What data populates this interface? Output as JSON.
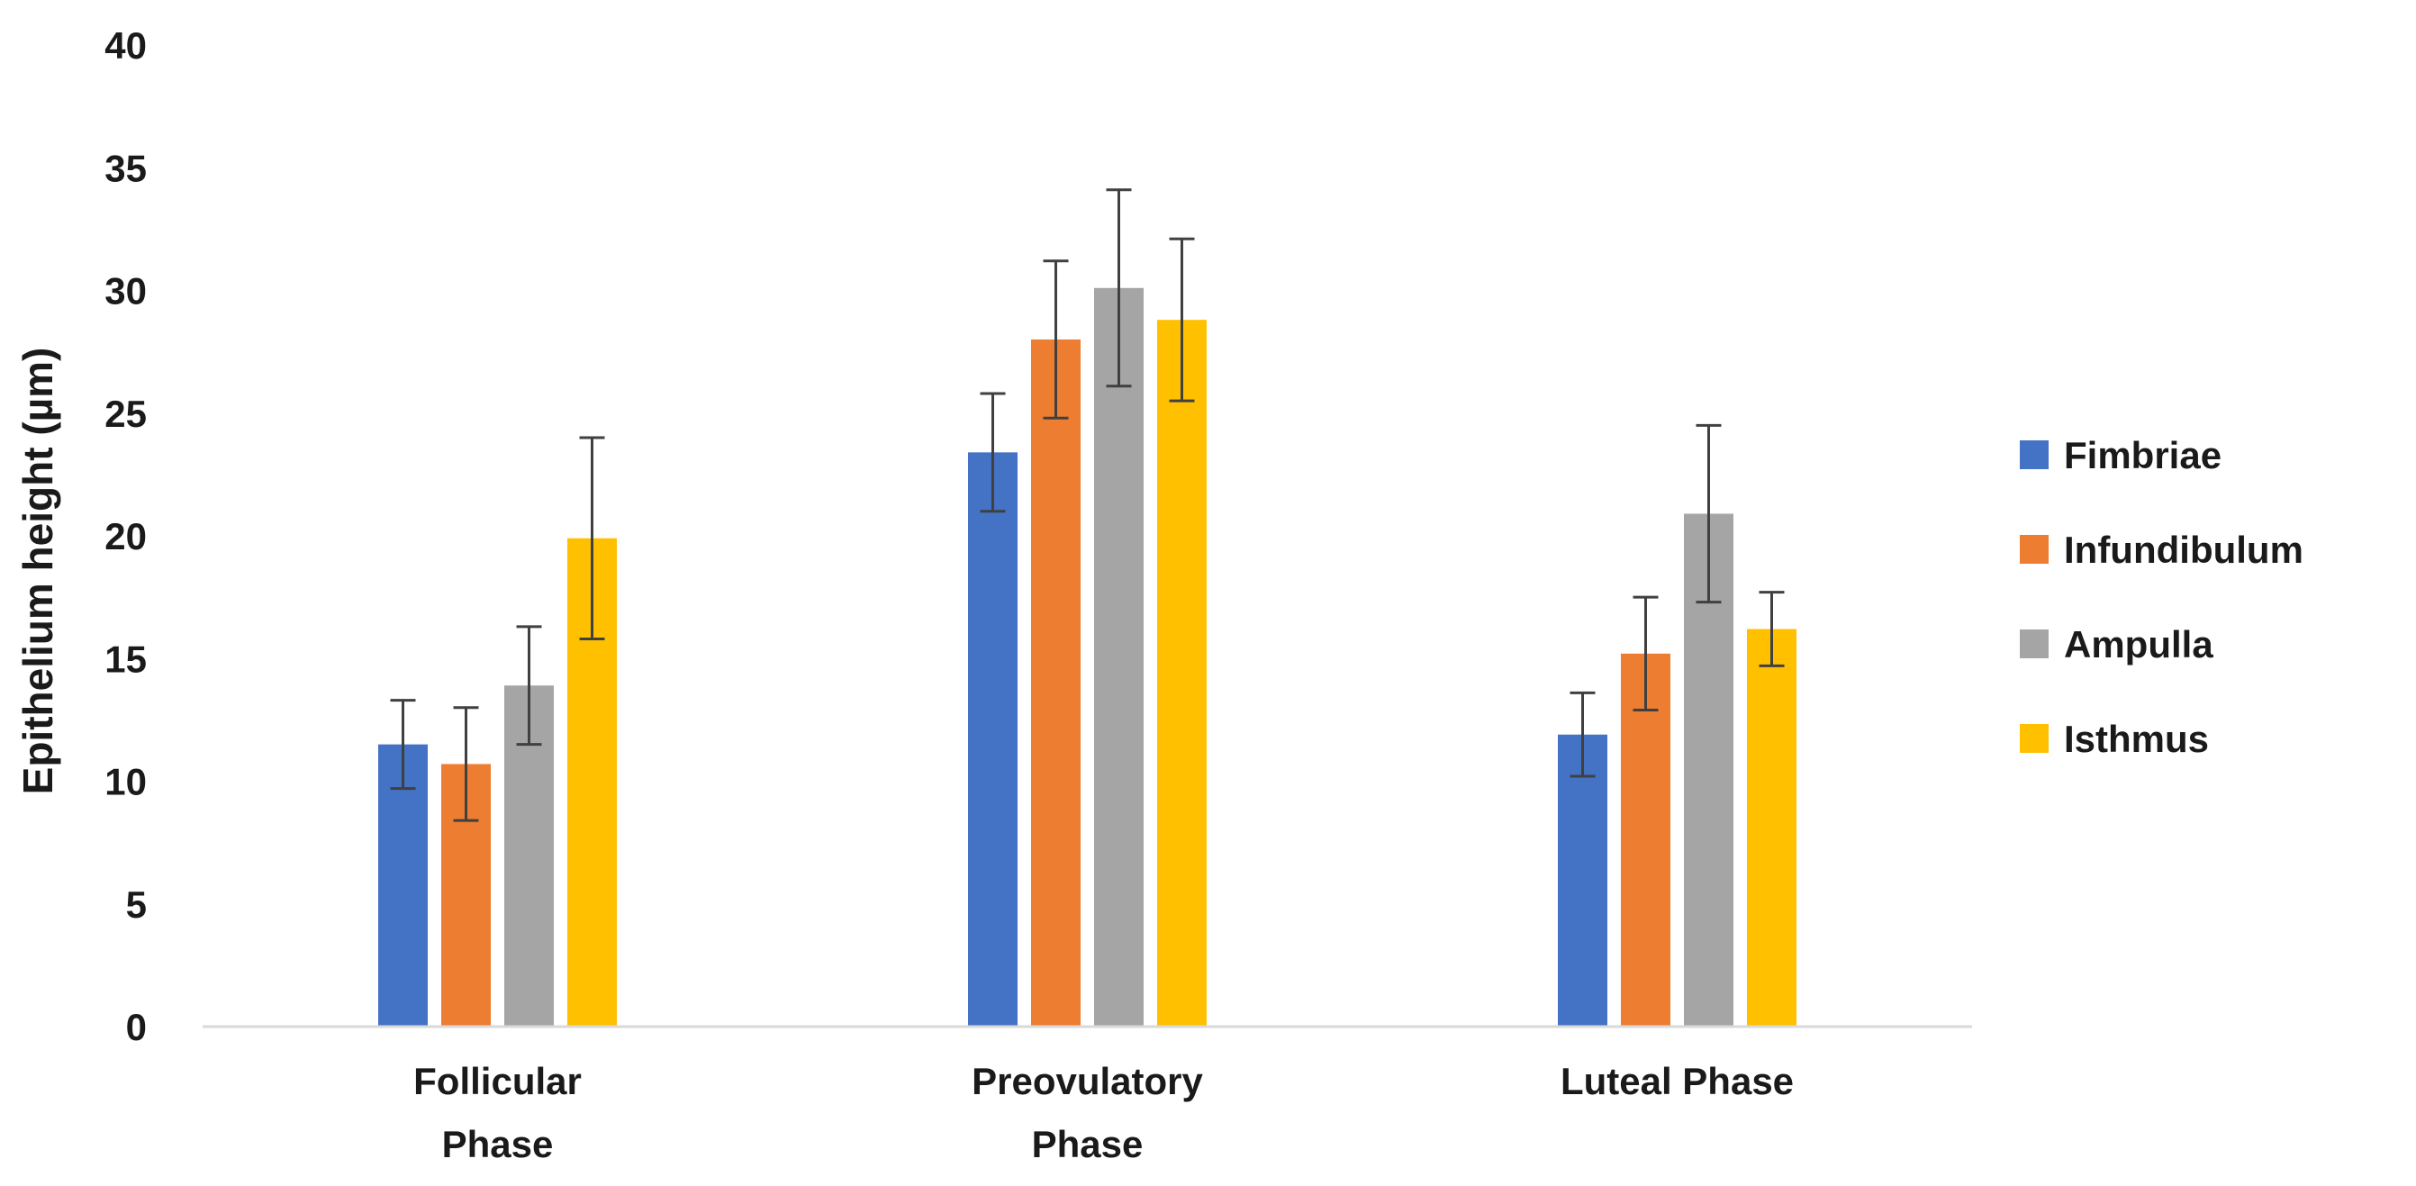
{
  "chart_data": {
    "type": "bar",
    "title": "",
    "xlabel": "",
    "ylabel": "Epithelium height (µm)",
    "ylim": [
      0,
      40
    ],
    "yticks": [
      0,
      5,
      10,
      15,
      20,
      25,
      30,
      35,
      40
    ],
    "grid": false,
    "legend_position": "right",
    "categories": [
      [
        "Follicular",
        "Phase"
      ],
      [
        "Preovulatory",
        "Phase"
      ],
      [
        "Luteal Phase"
      ]
    ],
    "series": [
      {
        "name": "Fimbriae",
        "color": "#4472C4",
        "values": [
          11.5,
          23.4,
          11.9
        ],
        "errors": [
          1.8,
          2.4,
          1.7
        ]
      },
      {
        "name": "Infundibulum",
        "color": "#ED7D31",
        "values": [
          10.7,
          28.0,
          15.2
        ],
        "errors": [
          2.3,
          3.2,
          2.3
        ]
      },
      {
        "name": "Ampulla",
        "color": "#A5A5A5",
        "values": [
          13.9,
          30.1,
          20.9
        ],
        "errors": [
          2.4,
          4.0,
          3.6
        ]
      },
      {
        "name": "Isthmus",
        "color": "#FFC000",
        "values": [
          19.9,
          28.8,
          16.2
        ],
        "errors": [
          4.1,
          3.3,
          1.5
        ]
      }
    ]
  }
}
